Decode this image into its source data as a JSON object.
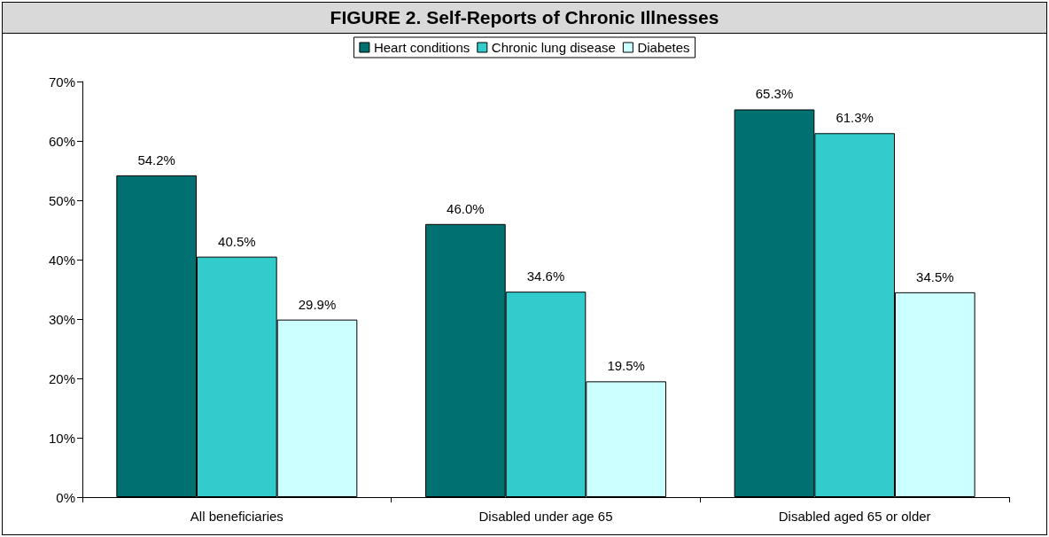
{
  "chart_data": {
    "type": "bar",
    "title": "FIGURE 2. Self-Reports of Chronic Illnesses",
    "categories": [
      "All beneficiaries",
      "Disabled under age 65",
      "Disabled aged 65 or older"
    ],
    "series": [
      {
        "name": "Heart conditions",
        "color": "#007070",
        "values": [
          54.2,
          46.0,
          65.3
        ],
        "value_labels": [
          "54.2%",
          "46.0%",
          "65.3%"
        ]
      },
      {
        "name": "Chronic lung disease",
        "color": "#33cccc",
        "values": [
          40.5,
          34.6,
          61.3
        ],
        "value_labels": [
          "40.5%",
          "34.6%",
          "61.3%"
        ]
      },
      {
        "name": "Diabetes",
        "color": "#ccffff",
        "values": [
          29.9,
          19.5,
          34.5
        ],
        "value_labels": [
          "29.9%",
          "19.5%",
          "34.5%"
        ]
      }
    ],
    "ylim": [
      0,
      70
    ],
    "yticks": [
      {
        "value": 0,
        "label": "0%"
      },
      {
        "value": 10,
        "label": "10%"
      },
      {
        "value": 20,
        "label": "20%"
      },
      {
        "value": 30,
        "label": "30%"
      },
      {
        "value": 40,
        "label": "40%"
      },
      {
        "value": 50,
        "label": "50%"
      },
      {
        "value": 60,
        "label": "60%"
      },
      {
        "value": 70,
        "label": "70%"
      }
    ],
    "grid": false,
    "legend": "top"
  }
}
